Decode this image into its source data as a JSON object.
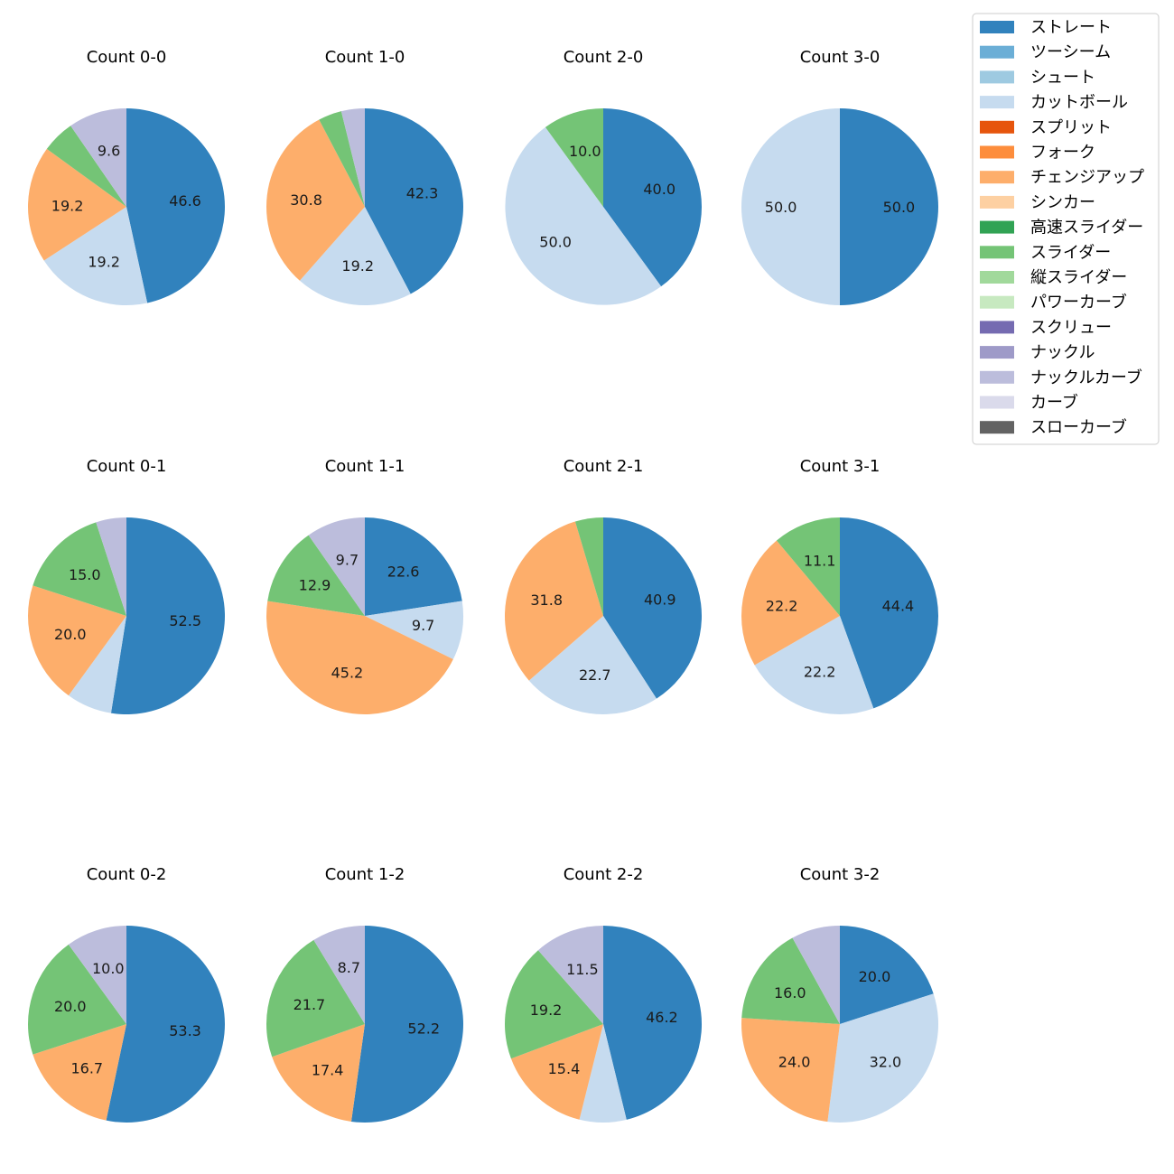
{
  "chart_data": {
    "type": "pie",
    "start_angle": "top, clockwise",
    "pitch_types": [
      {
        "name": "ストレート",
        "color": "#3182bd"
      },
      {
        "name": "ツーシーム",
        "color": "#6baed6"
      },
      {
        "name": "シュート",
        "color": "#9ecae1"
      },
      {
        "name": "カットボール",
        "color": "#c6dbef"
      },
      {
        "name": "スプリット",
        "color": "#e6550d"
      },
      {
        "name": "フォーク",
        "color": "#fd8d3c"
      },
      {
        "name": "チェンジアップ",
        "color": "#fdae6b"
      },
      {
        "name": "シンカー",
        "color": "#fdd0a2"
      },
      {
        "name": "高速スライダー",
        "color": "#31a354"
      },
      {
        "name": "スライダー",
        "color": "#74c476"
      },
      {
        "name": "縦スライダー",
        "color": "#a1d99b"
      },
      {
        "name": "パワーカーブ",
        "color": "#c7e9c0"
      },
      {
        "name": "スクリュー",
        "color": "#756bb1"
      },
      {
        "name": "ナックル",
        "color": "#9e9ac8"
      },
      {
        "name": "ナックルカーブ",
        "color": "#bcbddc"
      },
      {
        "name": "カーブ",
        "color": "#dadaeb"
      },
      {
        "name": "スローカーブ",
        "color": "#636363"
      }
    ],
    "charts": [
      {
        "title": "Count 0-0",
        "slices": [
          {
            "type": "ストレート",
            "value": 46.6,
            "label": "46.6"
          },
          {
            "type": "カットボール",
            "value": 19.2,
            "label": "19.2"
          },
          {
            "type": "チェンジアップ",
            "value": 19.2,
            "label": "19.2"
          },
          {
            "type": "スライダー",
            "value": 5.4,
            "label": ""
          },
          {
            "type": "ナックルカーブ",
            "value": 9.6,
            "label": "9.6"
          }
        ]
      },
      {
        "title": "Count 1-0",
        "slices": [
          {
            "type": "ストレート",
            "value": 42.3,
            "label": "42.3"
          },
          {
            "type": "カットボール",
            "value": 19.2,
            "label": "19.2"
          },
          {
            "type": "チェンジアップ",
            "value": 30.8,
            "label": "30.8"
          },
          {
            "type": "スライダー",
            "value": 3.85,
            "label": ""
          },
          {
            "type": "ナックルカーブ",
            "value": 3.85,
            "label": ""
          }
        ]
      },
      {
        "title": "Count 2-0",
        "slices": [
          {
            "type": "ストレート",
            "value": 40.0,
            "label": "40.0"
          },
          {
            "type": "カットボール",
            "value": 50.0,
            "label": "50.0"
          },
          {
            "type": "スライダー",
            "value": 10.0,
            "label": "10.0"
          }
        ]
      },
      {
        "title": "Count 3-0",
        "slices": [
          {
            "type": "ストレート",
            "value": 50.0,
            "label": "50.0"
          },
          {
            "type": "カットボール",
            "value": 50.0,
            "label": "50.0"
          }
        ]
      },
      {
        "title": "Count 0-1",
        "slices": [
          {
            "type": "ストレート",
            "value": 52.5,
            "label": "52.5"
          },
          {
            "type": "カットボール",
            "value": 7.5,
            "label": ""
          },
          {
            "type": "チェンジアップ",
            "value": 20.0,
            "label": "20.0"
          },
          {
            "type": "スライダー",
            "value": 15.0,
            "label": "15.0"
          },
          {
            "type": "ナックルカーブ",
            "value": 5.0,
            "label": ""
          }
        ]
      },
      {
        "title": "Count 1-1",
        "slices": [
          {
            "type": "ストレート",
            "value": 22.6,
            "label": "22.6"
          },
          {
            "type": "カットボール",
            "value": 9.7,
            "label": "9.7"
          },
          {
            "type": "チェンジアップ",
            "value": 45.2,
            "label": "45.2"
          },
          {
            "type": "スライダー",
            "value": 12.9,
            "label": "12.9"
          },
          {
            "type": "ナックルカーブ",
            "value": 9.7,
            "label": "9.7"
          }
        ]
      },
      {
        "title": "Count 2-1",
        "slices": [
          {
            "type": "ストレート",
            "value": 40.9,
            "label": "40.9"
          },
          {
            "type": "カットボール",
            "value": 22.7,
            "label": "22.7"
          },
          {
            "type": "チェンジアップ",
            "value": 31.8,
            "label": "31.8"
          },
          {
            "type": "スライダー",
            "value": 4.6,
            "label": ""
          }
        ]
      },
      {
        "title": "Count 3-1",
        "slices": [
          {
            "type": "ストレート",
            "value": 44.4,
            "label": "44.4"
          },
          {
            "type": "カットボール",
            "value": 22.2,
            "label": "22.2"
          },
          {
            "type": "チェンジアップ",
            "value": 22.2,
            "label": "22.2"
          },
          {
            "type": "スライダー",
            "value": 11.1,
            "label": "11.1"
          }
        ]
      },
      {
        "title": "Count 0-2",
        "slices": [
          {
            "type": "ストレート",
            "value": 53.3,
            "label": "53.3"
          },
          {
            "type": "チェンジアップ",
            "value": 16.7,
            "label": "16.7"
          },
          {
            "type": "スライダー",
            "value": 20.0,
            "label": "20.0"
          },
          {
            "type": "ナックルカーブ",
            "value": 10.0,
            "label": "10.0"
          }
        ]
      },
      {
        "title": "Count 1-2",
        "slices": [
          {
            "type": "ストレート",
            "value": 52.2,
            "label": "52.2"
          },
          {
            "type": "チェンジアップ",
            "value": 17.4,
            "label": "17.4"
          },
          {
            "type": "スライダー",
            "value": 21.7,
            "label": "21.7"
          },
          {
            "type": "ナックルカーブ",
            "value": 8.7,
            "label": "8.7"
          }
        ]
      },
      {
        "title": "Count 2-2",
        "slices": [
          {
            "type": "ストレート",
            "value": 46.2,
            "label": "46.2"
          },
          {
            "type": "カットボール",
            "value": 7.7,
            "label": ""
          },
          {
            "type": "チェンジアップ",
            "value": 15.4,
            "label": "15.4"
          },
          {
            "type": "スライダー",
            "value": 19.2,
            "label": "19.2"
          },
          {
            "type": "ナックルカーブ",
            "value": 11.5,
            "label": "11.5"
          }
        ]
      },
      {
        "title": "Count 3-2",
        "slices": [
          {
            "type": "ストレート",
            "value": 20.0,
            "label": "20.0"
          },
          {
            "type": "カットボール",
            "value": 32.0,
            "label": "32.0"
          },
          {
            "type": "チェンジアップ",
            "value": 24.0,
            "label": "24.0"
          },
          {
            "type": "スライダー",
            "value": 16.0,
            "label": "16.0"
          },
          {
            "type": "ナックルカーブ",
            "value": 8.0,
            "label": ""
          }
        ]
      }
    ]
  }
}
